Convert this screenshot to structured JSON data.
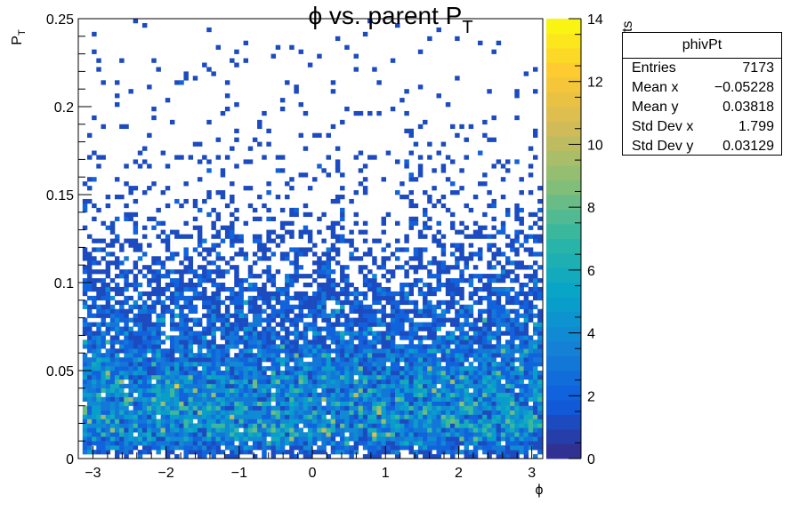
{
  "chart_data": {
    "type": "heatmap",
    "title_main": "ϕ vs. parent P",
    "title_sub": "T",
    "xlabel": "ϕ",
    "ylabel_main": "P",
    "ylabel_sub": "T",
    "zlabel_fragment": "ts",
    "xlim": [
      -3.2,
      3.15
    ],
    "ylim": [
      0,
      0.25
    ],
    "zlim": [
      0,
      14
    ],
    "x_ticks": [
      {
        "value": -3,
        "label": "−3"
      },
      {
        "value": -2,
        "label": "−2"
      },
      {
        "value": -1,
        "label": "−1"
      },
      {
        "value": 0,
        "label": "0"
      },
      {
        "value": 1,
        "label": "1"
      },
      {
        "value": 2,
        "label": "2"
      },
      {
        "value": 3,
        "label": "3"
      }
    ],
    "y_ticks": [
      {
        "value": 0,
        "label": "0"
      },
      {
        "value": 0.05,
        "label": "0.05"
      },
      {
        "value": 0.1,
        "label": "0.1"
      },
      {
        "value": 0.15,
        "label": "0.15"
      },
      {
        "value": 0.2,
        "label": "0.2"
      },
      {
        "value": 0.25,
        "label": "0.25"
      }
    ],
    "z_ticks": [
      {
        "value": 0,
        "label": "0"
      },
      {
        "value": 2,
        "label": "2"
      },
      {
        "value": 4,
        "label": "4"
      },
      {
        "value": 6,
        "label": "6"
      },
      {
        "value": 8,
        "label": "8"
      },
      {
        "value": 10,
        "label": "10"
      },
      {
        "value": 12,
        "label": "12"
      },
      {
        "value": 14,
        "label": "14"
      }
    ],
    "bins_x": 100,
    "bins_y": 100,
    "distribution": {
      "peak_pt": 0.025,
      "max_count": 14,
      "description_phi": "approximately uniform in ϕ over [−π, π]"
    },
    "colormap": [
      "#352a87",
      "#0f5cdd",
      "#1481d6",
      "#06a4ca",
      "#2eb7a4",
      "#87bf77",
      "#d1bb59",
      "#fec832",
      "#f9fb0e"
    ]
  },
  "stats": {
    "name": "phivPt",
    "rows": [
      {
        "label": "Entries",
        "value": "7173"
      },
      {
        "label": "Mean x",
        "value": "−0.05228"
      },
      {
        "label": "Mean y",
        "value": "0.03818"
      },
      {
        "label": "Std Dev x",
        "value": "1.799"
      },
      {
        "label": "Std Dev y",
        "value": "0.03129"
      }
    ]
  }
}
